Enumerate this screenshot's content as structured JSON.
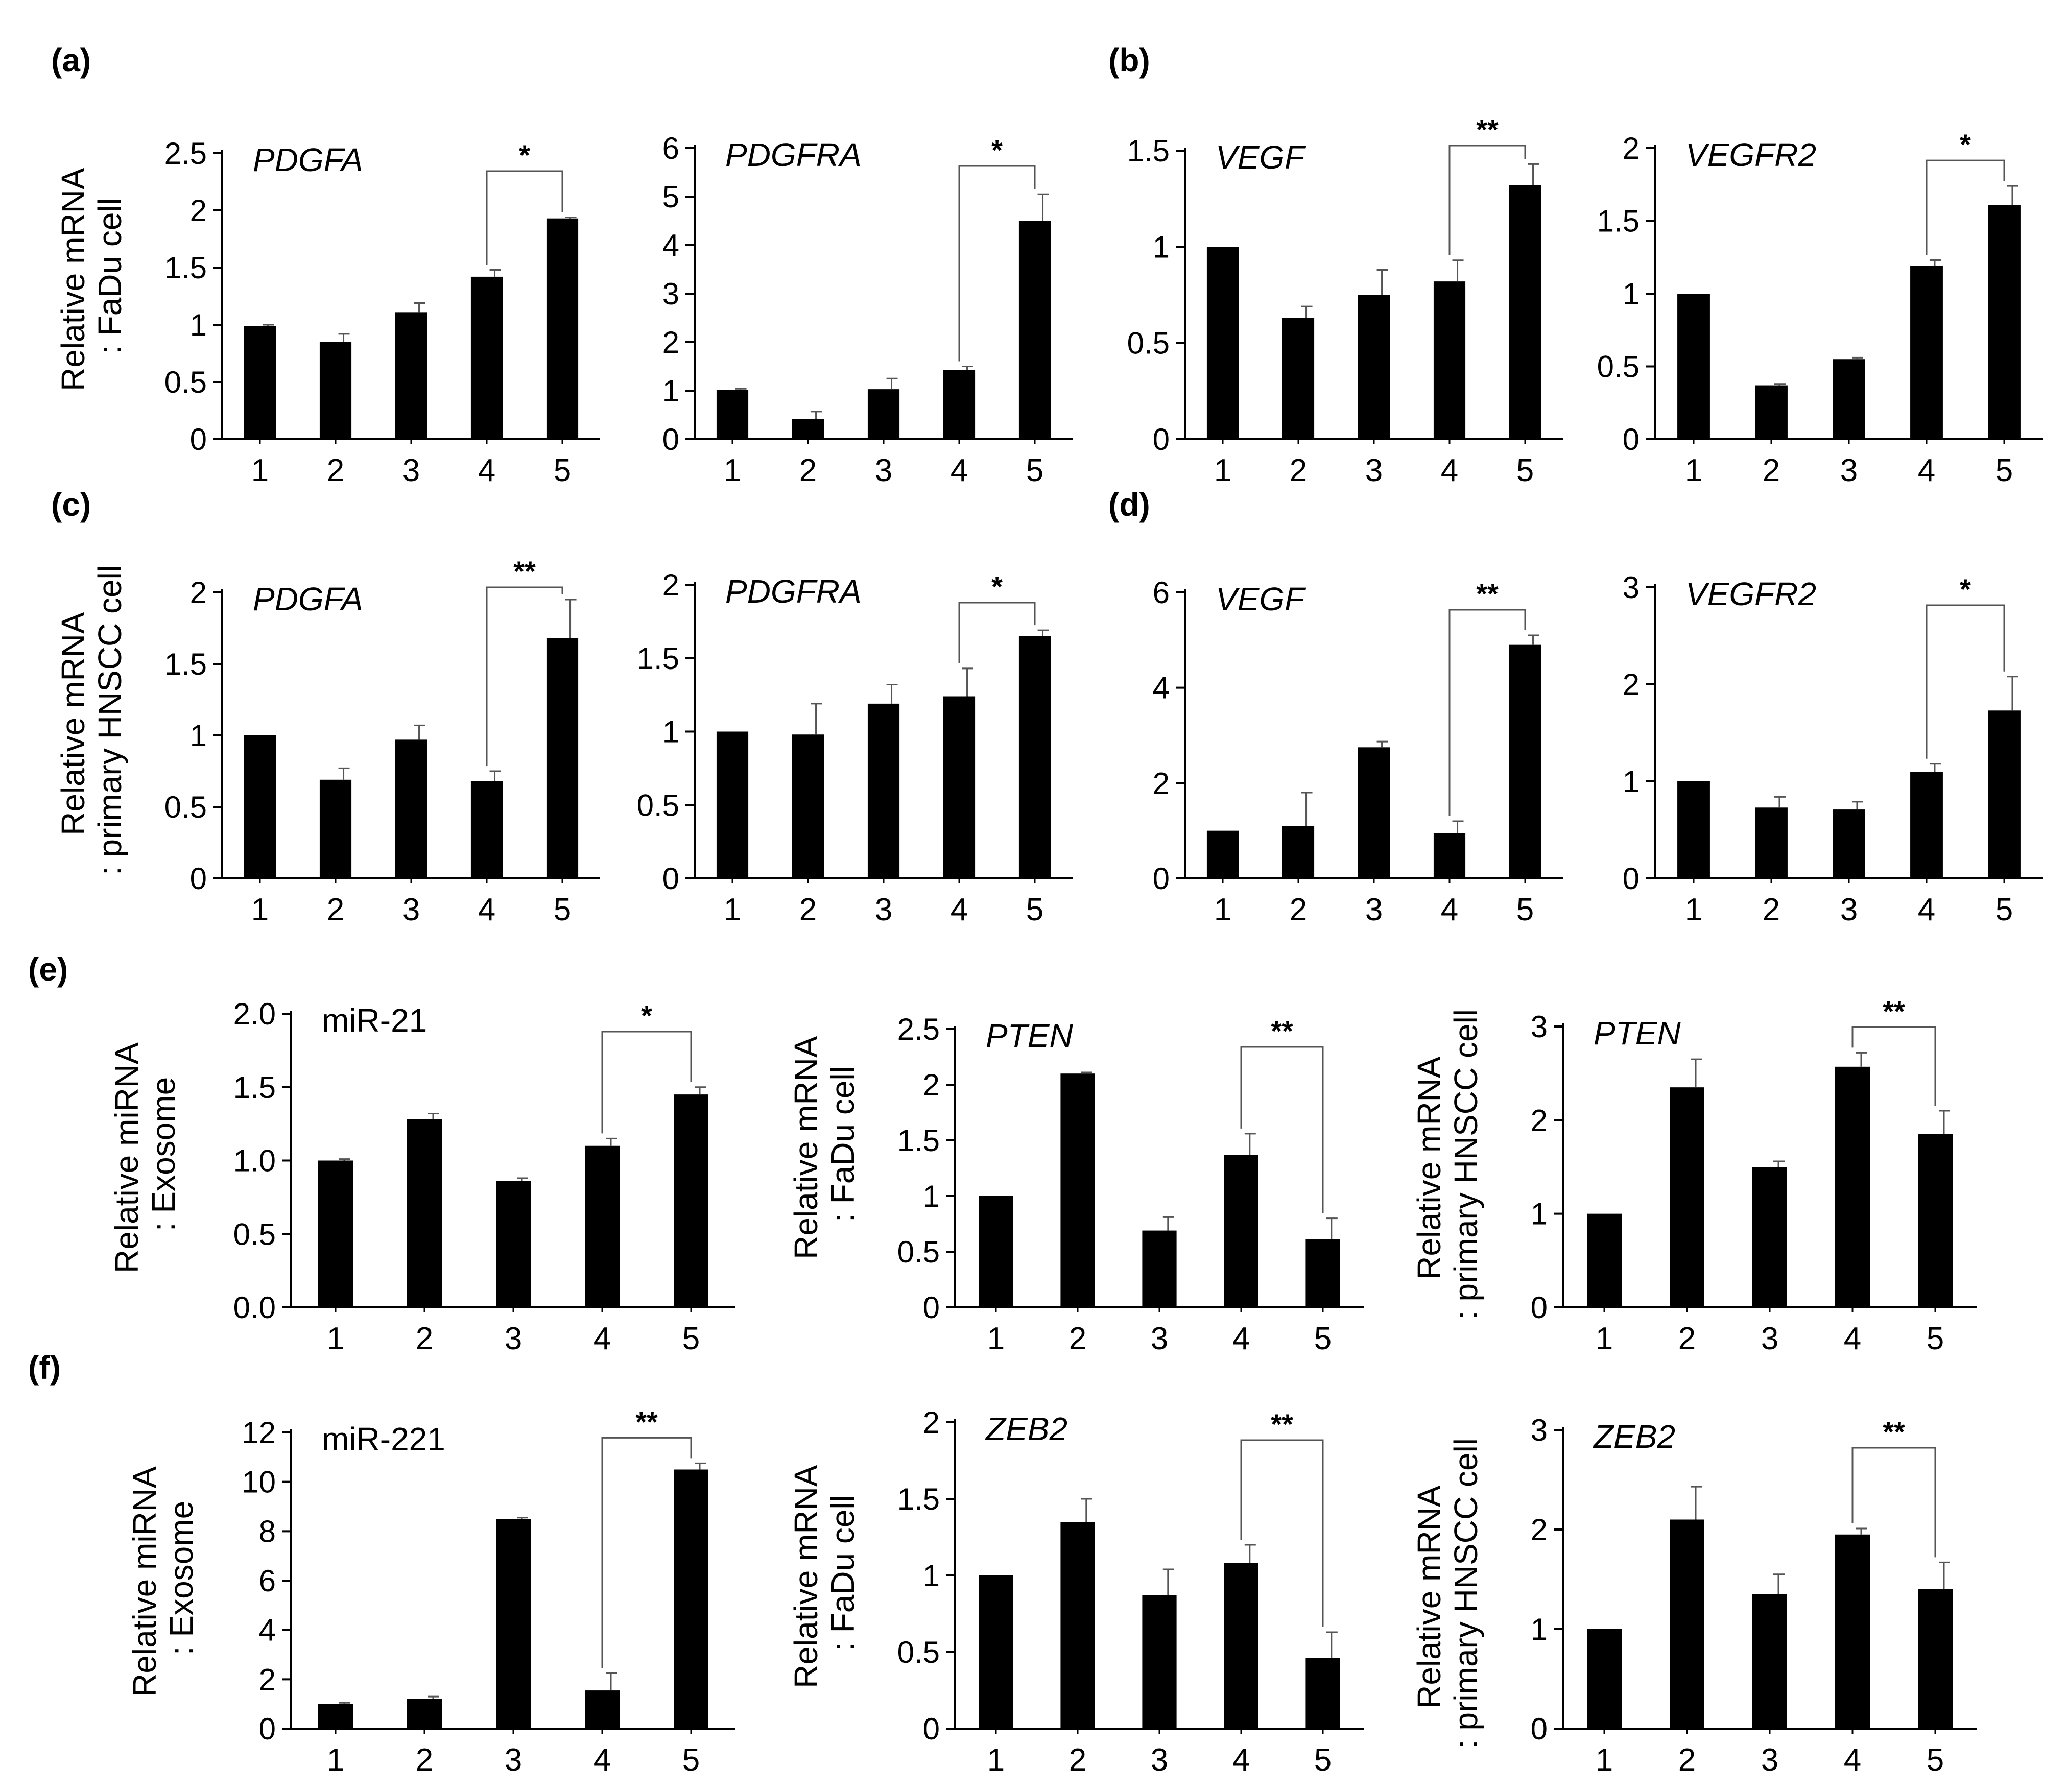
{
  "figure": {
    "panel_labels": [
      "(a)",
      "(b)",
      "(c)",
      "(d)",
      "(e)",
      "(f)"
    ]
  },
  "ylabels": {
    "fadu": [
      "Relative mRNA",
      ": FaDu cell"
    ],
    "hnscc": [
      "Relative mRNA",
      ": primary HNSCC cell"
    ],
    "exosome": [
      "Relative miRNA",
      ": Exosome"
    ]
  },
  "chart_data": [
    {
      "panel": "(a)",
      "type": "bar",
      "title": "PDGFA",
      "title_italic": true,
      "ylabel": "Relative mRNA : FaDu cell",
      "categories": [
        "1",
        "2",
        "3",
        "4",
        "5"
      ],
      "values": [
        0.99,
        0.85,
        1.11,
        1.42,
        1.93
      ],
      "errors": [
        0.01,
        0.07,
        0.08,
        0.06,
        0.01
      ],
      "ylim": [
        0,
        2.5
      ],
      "yticks": [
        "0",
        "0.5",
        "1",
        "1.5",
        "2",
        "2.5"
      ],
      "significance": {
        "from": 4,
        "to": 5,
        "label": "*"
      }
    },
    {
      "panel": "(a)",
      "type": "bar",
      "title": "PDGFRA",
      "title_italic": true,
      "ylabel": "",
      "categories": [
        "1",
        "2",
        "3",
        "4",
        "5"
      ],
      "values": [
        1.02,
        0.42,
        1.03,
        1.43,
        4.5
      ],
      "errors": [
        0.02,
        0.15,
        0.22,
        0.07,
        0.55
      ],
      "ylim": [
        0,
        6
      ],
      "yticks": [
        "0",
        "1",
        "2",
        "3",
        "4",
        "5",
        "6"
      ],
      "significance": {
        "from": 4,
        "to": 5,
        "label": "*"
      }
    },
    {
      "panel": "(b)",
      "type": "bar",
      "title": "VEGF",
      "title_italic": true,
      "ylabel": "",
      "categories": [
        "1",
        "2",
        "3",
        "4",
        "5"
      ],
      "values": [
        1.0,
        0.63,
        0.75,
        0.82,
        1.32
      ],
      "errors": [
        0.0,
        0.06,
        0.13,
        0.11,
        0.11
      ],
      "ylim": [
        0,
        1.5
      ],
      "yticks": [
        "0",
        "0.5",
        "1",
        "1.5"
      ],
      "significance": {
        "from": 4,
        "to": 5,
        "label": "**"
      }
    },
    {
      "panel": "(b)",
      "type": "bar",
      "title": "VEGFR2",
      "title_italic": true,
      "ylabel": "",
      "categories": [
        "1",
        "2",
        "3",
        "4",
        "5"
      ],
      "values": [
        1.0,
        0.37,
        0.55,
        1.19,
        1.61
      ],
      "errors": [
        0.0,
        0.01,
        0.01,
        0.04,
        0.13
      ],
      "ylim": [
        0,
        2
      ],
      "yticks": [
        "0",
        "0.5",
        "1",
        "1.5",
        "2"
      ],
      "significance": {
        "from": 4,
        "to": 5,
        "label": "*"
      }
    },
    {
      "panel": "(c)",
      "type": "bar",
      "title": "PDGFA",
      "title_italic": true,
      "ylabel": "Relative mRNA : primary HNSCC cell",
      "categories": [
        "1",
        "2",
        "3",
        "4",
        "5"
      ],
      "values": [
        1.0,
        0.69,
        0.97,
        0.68,
        1.68
      ],
      "errors": [
        0.0,
        0.08,
        0.1,
        0.07,
        0.27
      ],
      "ylim": [
        0,
        2
      ],
      "yticks": [
        "0",
        "0.5",
        "1",
        "1.5",
        "2"
      ],
      "significance": {
        "from": 4,
        "to": 5,
        "label": "**"
      }
    },
    {
      "panel": "(c)",
      "type": "bar",
      "title": "PDGFRA",
      "title_italic": true,
      "ylabel": "",
      "categories": [
        "1",
        "2",
        "3",
        "4",
        "5"
      ],
      "values": [
        1.0,
        0.98,
        1.19,
        1.24,
        1.65
      ],
      "errors": [
        0.0,
        0.21,
        0.13,
        0.19,
        0.04
      ],
      "ylim": [
        0,
        2
      ],
      "yticks": [
        "0",
        "0.5",
        "1",
        "1.5",
        "2"
      ],
      "significance": {
        "from": 4,
        "to": 5,
        "label": "*"
      }
    },
    {
      "panel": "(d)",
      "type": "bar",
      "title": "VEGF",
      "title_italic": true,
      "ylabel": "",
      "categories": [
        "1",
        "2",
        "3",
        "4",
        "5"
      ],
      "values": [
        1.0,
        1.1,
        2.75,
        0.95,
        4.9
      ],
      "errors": [
        0.0,
        0.7,
        0.12,
        0.25,
        0.2
      ],
      "ylim": [
        0,
        6
      ],
      "yticks": [
        "0",
        "2",
        "4",
        "6"
      ],
      "significance": {
        "from": 4,
        "to": 5,
        "label": "**"
      }
    },
    {
      "panel": "(d)",
      "type": "bar",
      "title": "VEGFR2",
      "title_italic": true,
      "ylabel": "",
      "categories": [
        "1",
        "2",
        "3",
        "4",
        "5"
      ],
      "values": [
        1.0,
        0.73,
        0.71,
        1.1,
        1.73
      ],
      "errors": [
        0.0,
        0.11,
        0.08,
        0.08,
        0.35
      ],
      "ylim": [
        0,
        3
      ],
      "yticks": [
        "0",
        "1",
        "2",
        "3"
      ],
      "significance": {
        "from": 4,
        "to": 5,
        "label": "*"
      }
    },
    {
      "panel": "(e)",
      "type": "bar",
      "title": "miR-21",
      "title_italic": false,
      "ylabel": "Relative miRNA : Exosome",
      "categories": [
        "1",
        "2",
        "3",
        "4",
        "5"
      ],
      "values": [
        1.0,
        1.28,
        0.86,
        1.1,
        1.45
      ],
      "errors": [
        0.01,
        0.04,
        0.02,
        0.05,
        0.05
      ],
      "ylim": [
        0,
        2
      ],
      "yticks": [
        "0.0",
        "0.5",
        "1.0",
        "1.5",
        "2.0"
      ],
      "significance": {
        "from": 4,
        "to": 5,
        "label": "*"
      }
    },
    {
      "panel": "(e)",
      "type": "bar",
      "title": "PTEN",
      "title_italic": true,
      "ylabel": "Relative mRNA : FaDu cell",
      "categories": [
        "1",
        "2",
        "3",
        "4",
        "5"
      ],
      "values": [
        1.0,
        2.1,
        0.69,
        1.37,
        0.61
      ],
      "errors": [
        0.0,
        0.01,
        0.12,
        0.19,
        0.19
      ],
      "ylim": [
        0,
        2.5
      ],
      "yticks": [
        "0",
        "0.5",
        "1",
        "1.5",
        "2",
        "2.5"
      ],
      "significance": {
        "from": 4,
        "to": 5,
        "label": "**"
      }
    },
    {
      "panel": "(e)",
      "type": "bar",
      "title": "PTEN",
      "title_italic": true,
      "ylabel": "Relative mRNA : primary HNSCC cell",
      "categories": [
        "1",
        "2",
        "3",
        "4",
        "5"
      ],
      "values": [
        1.0,
        2.35,
        1.5,
        2.57,
        1.85
      ],
      "errors": [
        0.0,
        0.3,
        0.06,
        0.15,
        0.25
      ],
      "ylim": [
        0,
        3
      ],
      "yticks": [
        "0",
        "1",
        "2",
        "3"
      ],
      "significance": {
        "from": 4,
        "to": 5,
        "label": "**"
      }
    },
    {
      "panel": "(f)",
      "type": "bar",
      "title": "miR-221",
      "title_italic": false,
      "ylabel": "Relative miRNA : Exosome",
      "categories": [
        "1",
        "2",
        "3",
        "4",
        "5"
      ],
      "values": [
        1.0,
        1.2,
        8.5,
        1.55,
        10.5
      ],
      "errors": [
        0.05,
        0.1,
        0.05,
        0.7,
        0.25
      ],
      "ylim": [
        0,
        12
      ],
      "yticks": [
        "0",
        "2",
        "4",
        "6",
        "8",
        "10",
        "12"
      ],
      "significance": {
        "from": 4,
        "to": 5,
        "label": "**"
      }
    },
    {
      "panel": "(f)",
      "type": "bar",
      "title": "ZEB2",
      "title_italic": true,
      "ylabel": "Relative mRNA : FaDu cell",
      "categories": [
        "1",
        "2",
        "3",
        "4",
        "5"
      ],
      "values": [
        1.0,
        1.35,
        0.87,
        1.08,
        0.46
      ],
      "errors": [
        0.0,
        0.15,
        0.17,
        0.12,
        0.17
      ],
      "ylim": [
        0,
        2
      ],
      "yticks": [
        "0",
        "0.5",
        "1",
        "1.5",
        "2"
      ],
      "significance": {
        "from": 4,
        "to": 5,
        "label": "**"
      }
    },
    {
      "panel": "(f)",
      "type": "bar",
      "title": "ZEB2",
      "title_italic": true,
      "ylabel": "Relative mRNA : primary HNSCC cell",
      "categories": [
        "1",
        "2",
        "3",
        "4",
        "5"
      ],
      "values": [
        1.0,
        2.1,
        1.35,
        1.95,
        1.4
      ],
      "errors": [
        0.0,
        0.33,
        0.2,
        0.06,
        0.27
      ],
      "ylim": [
        0,
        3
      ],
      "yticks": [
        "0",
        "1",
        "2",
        "3"
      ],
      "significance": {
        "from": 4,
        "to": 5,
        "label": "**"
      }
    }
  ]
}
